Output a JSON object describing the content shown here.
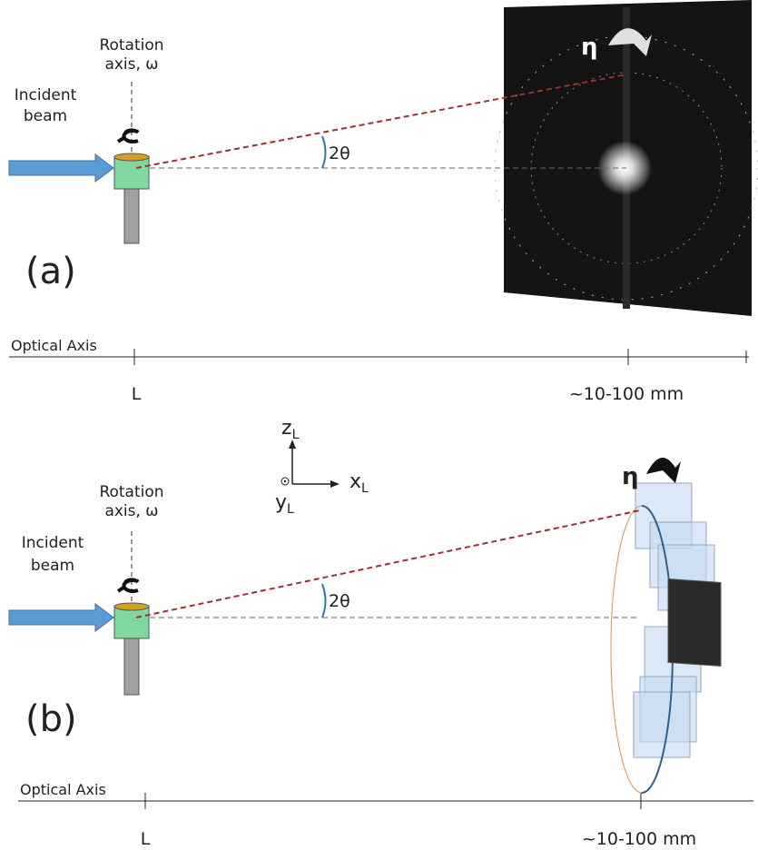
{
  "panels": [
    {
      "label": "(a)",
      "rotation_axis": [
        "Rotation",
        "axis, ω"
      ],
      "incident_beam": [
        "Incident",
        "beam"
      ],
      "eta": "η",
      "two_theta": "2θ",
      "optical_axis": "Optical Axis",
      "origin_label": "L",
      "distance_label": "~10-100 mm"
    },
    {
      "label": "(b)",
      "rotation_axis": [
        "Rotation",
        "axis, ω"
      ],
      "incident_beam": [
        "Incident",
        "beam"
      ],
      "eta": "η",
      "two_theta": "2θ",
      "optical_axis": "Optical Axis",
      "origin_label": "L",
      "distance_label": "~10-100 mm"
    }
  ],
  "coordinate_axes": {
    "z": {
      "main": "z",
      "sub": "L"
    },
    "x": {
      "main": "x",
      "sub": "L"
    },
    "y": {
      "main": "y",
      "sub": "L"
    }
  }
}
